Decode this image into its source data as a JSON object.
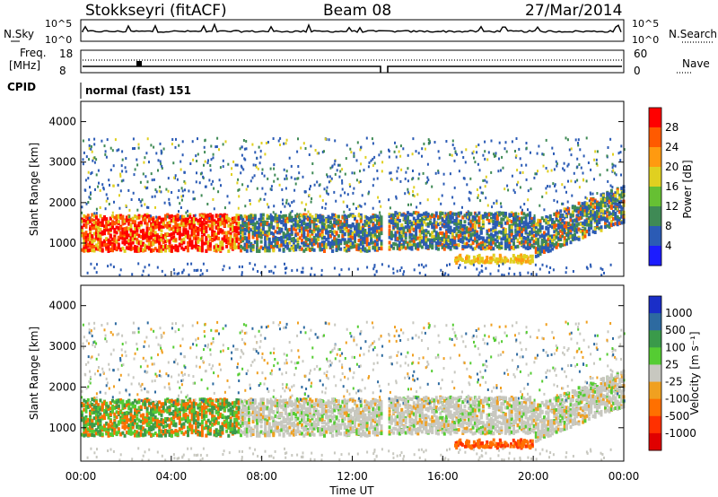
{
  "header": {
    "station": "Stokkseyri (fitACF)",
    "beam": "Beam 08",
    "date": "27/Mar/2014"
  },
  "top_panels": {
    "nsky_label": "N.Sky",
    "nsky_ticks": [
      "10^5",
      "10^0"
    ],
    "nsearch_label": "N.Search",
    "nsearch_ticks": [
      "10^5",
      "10^0"
    ],
    "freq_label": "Freq.",
    "freq_unit": "[MHz]",
    "freq_ticks": [
      "18",
      "8"
    ],
    "nave_label": "Nave",
    "nave_ticks": [
      "60",
      "0"
    ],
    "cpid_label": "CPID",
    "cpid_value": "normal (fast) 151"
  },
  "chart_data": [
    {
      "type": "heatmap",
      "name_printed": "Power",
      "ylabel": "Slant Range [km]",
      "ylim": [
        180,
        4500
      ],
      "yticks": [
        "1000",
        "2000",
        "3000",
        "4000"
      ],
      "colorbar_label": "Power [dB]",
      "colorbar_ticks": [
        "4",
        "8",
        "12",
        "16",
        "20",
        "24",
        "28"
      ],
      "colorbar_range": [
        0,
        30
      ],
      "colors": [
        "#1c1cff",
        "#2b5bb5",
        "#3f8a55",
        "#66c033",
        "#e0d020",
        "#ff9a10",
        "#ff5a00",
        "#ff0000"
      ]
    },
    {
      "type": "heatmap",
      "name_printed": "Velocity",
      "ylabel": "Slant Range [km]",
      "ylim": [
        180,
        4500
      ],
      "yticks": [
        "1000",
        "2000",
        "3000",
        "4000"
      ],
      "colorbar_label": "Velocity [m s⁻¹]",
      "colorbar_ticks": [
        "1000",
        "500",
        "100",
        "25",
        "-25",
        "-100",
        "-500",
        "-1000"
      ],
      "colors": [
        "#1a2ec8",
        "#2d6aa0",
        "#3a9a4a",
        "#55cc33",
        "#c8c8c0",
        "#f0a020",
        "#ff7000",
        "#ff3000",
        "#e00000"
      ]
    }
  ],
  "time_axis": {
    "ticks": [
      "00:00",
      "04:00",
      "08:00",
      "12:00",
      "16:00",
      "20:00",
      "00:00"
    ],
    "label": "Time UT"
  },
  "colors": {
    "frame": "#000000",
    "gap": "#ffffff",
    "background": "#ffffff"
  }
}
